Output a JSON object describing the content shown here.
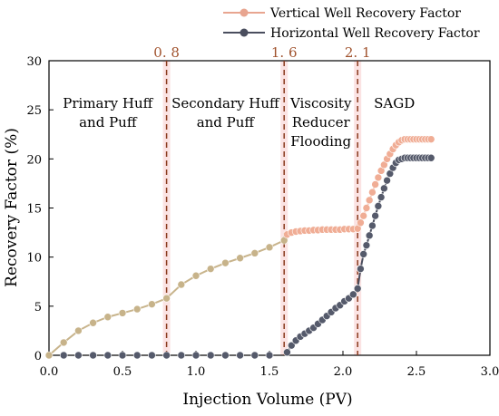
{
  "chart_data": {
    "type": "line",
    "title": "",
    "xlabel": "Injection Volume (PV)",
    "ylabel": "Recovery Factor (%)",
    "xlim": [
      0.0,
      3.0
    ],
    "ylim": [
      0,
      30
    ],
    "x_ticks": [
      "0.0",
      "0.5",
      "1.0",
      "1.5",
      "2.0",
      "2.5",
      "3.0"
    ],
    "y_ticks": [
      "0",
      "5",
      "10",
      "15",
      "20",
      "25",
      "30"
    ],
    "grid": false,
    "legend_position": "top-right (outside plot)",
    "legend": [
      {
        "label": "Vertical Well Recovery Factor",
        "color": "#e8a590"
      },
      {
        "label": "Horizontal Well Recovery Factor",
        "color": "#4a4e5e"
      }
    ],
    "stage_boundaries": [
      {
        "x": 0.8,
        "label": "0. 8"
      },
      {
        "x": 1.6,
        "label": "1. 6"
      },
      {
        "x": 2.1,
        "label": "2. 1"
      }
    ],
    "stage_labels": [
      {
        "lines": [
          "Primary Huff",
          "and Puff"
        ],
        "x": 0.4,
        "y": 25.2
      },
      {
        "lines": [
          "Secondary Huff",
          "and Puff"
        ],
        "x": 1.2,
        "y": 25.2
      },
      {
        "lines": [
          "Viscosity",
          "Reducer",
          "Flooding"
        ],
        "x": 1.85,
        "y": 25.2
      },
      {
        "lines": [
          "SAGD"
        ],
        "x": 2.35,
        "y": 25.2
      }
    ],
    "series": [
      {
        "name": "Vertical Well Recovery Factor",
        "color_p1": "#c7b38a",
        "color_p2": "#f0ad95",
        "color_line_p1": "#c8b48c",
        "color_line_p2": "#f2b4a0",
        "x": [
          0.0,
          0.1,
          0.2,
          0.3,
          0.4,
          0.5,
          0.6,
          0.7,
          0.8,
          0.9,
          1.0,
          1.1,
          1.2,
          1.3,
          1.4,
          1.5,
          1.6,
          1.62,
          1.65,
          1.68,
          1.71,
          1.74,
          1.77,
          1.8,
          1.83,
          1.86,
          1.89,
          1.92,
          1.95,
          1.98,
          2.01,
          2.04,
          2.07,
          2.1,
          2.12,
          2.14,
          2.16,
          2.18,
          2.2,
          2.22,
          2.24,
          2.26,
          2.28,
          2.3,
          2.32,
          2.34,
          2.36,
          2.38,
          2.4,
          2.42,
          2.44,
          2.46,
          2.48,
          2.5,
          2.52,
          2.54,
          2.56,
          2.58,
          2.6
        ],
        "values": [
          0.0,
          1.3,
          2.5,
          3.3,
          3.9,
          4.3,
          4.7,
          5.2,
          5.8,
          7.2,
          8.1,
          8.8,
          9.4,
          9.9,
          10.4,
          11.0,
          11.7,
          12.3,
          12.5,
          12.6,
          12.65,
          12.7,
          12.7,
          12.75,
          12.75,
          12.8,
          12.8,
          12.8,
          12.8,
          12.8,
          12.85,
          12.85,
          12.85,
          12.9,
          13.5,
          14.2,
          15.0,
          15.8,
          16.6,
          17.4,
          18.1,
          18.8,
          19.4,
          20.0,
          20.5,
          21.0,
          21.4,
          21.7,
          21.9,
          22.0,
          22.0,
          22.0,
          22.0,
          22.0,
          22.0,
          22.0,
          22.0,
          22.0,
          22.0
        ]
      },
      {
        "name": "Horizontal Well Recovery Factor",
        "color": "#4a4e5e",
        "x": [
          0.1,
          0.2,
          0.3,
          0.4,
          0.5,
          0.6,
          0.7,
          0.8,
          0.9,
          1.0,
          1.1,
          1.2,
          1.3,
          1.4,
          1.5,
          1.62,
          1.65,
          1.68,
          1.71,
          1.74,
          1.77,
          1.8,
          1.83,
          1.86,
          1.89,
          1.92,
          1.95,
          1.98,
          2.01,
          2.04,
          2.07,
          2.1,
          2.12,
          2.14,
          2.16,
          2.18,
          2.2,
          2.22,
          2.24,
          2.26,
          2.28,
          2.3,
          2.32,
          2.34,
          2.36,
          2.38,
          2.4,
          2.42,
          2.44,
          2.46,
          2.48,
          2.5,
          2.52,
          2.54,
          2.56,
          2.58,
          2.6
        ],
        "values": [
          0.0,
          0.0,
          0.0,
          0.0,
          0.0,
          0.0,
          0.0,
          0.0,
          0.0,
          0.0,
          0.0,
          0.0,
          0.0,
          0.0,
          0.0,
          0.3,
          1.0,
          1.5,
          1.9,
          2.2,
          2.5,
          2.8,
          3.2,
          3.6,
          4.0,
          4.4,
          4.8,
          5.1,
          5.5,
          5.8,
          6.2,
          6.8,
          8.8,
          10.3,
          11.2,
          12.2,
          13.2,
          14.2,
          15.2,
          16.1,
          17.0,
          17.8,
          18.5,
          19.1,
          19.6,
          19.9,
          20.0,
          20.1,
          20.1,
          20.1,
          20.1,
          20.1,
          20.1,
          20.1,
          20.1,
          20.1,
          20.1
        ]
      }
    ]
  }
}
